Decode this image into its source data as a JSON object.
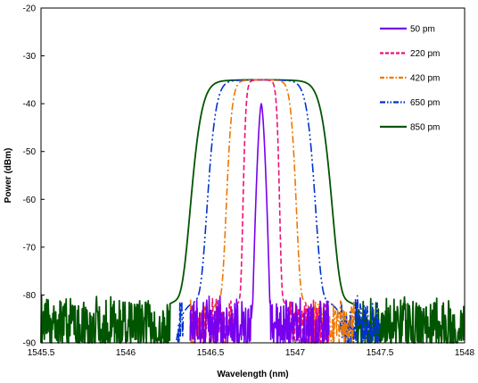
{
  "chart_data": {
    "type": "line",
    "title": "",
    "xlabel": "Wavelength (nm)",
    "ylabel": "Power (dBm)",
    "xlim": [
      1545.5,
      1548
    ],
    "ylim": [
      -90,
      -20
    ],
    "xticks": [
      1545.5,
      1546,
      1546.5,
      1547,
      1547.5,
      1548
    ],
    "xtick_labels": [
      "1545.5",
      "1546",
      "1546.5",
      "1547",
      "1547.5",
      "1548"
    ],
    "yticks": [
      -20,
      -30,
      -40,
      -50,
      -60,
      -70,
      -80,
      -90
    ],
    "ytick_labels": [
      "-20",
      "-30",
      "-40",
      "-50",
      "-60",
      "-70",
      "-80",
      "-90"
    ],
    "grid": false,
    "legend_position": "top-right",
    "noise_floor_range": [
      -90,
      -81
    ],
    "series": [
      {
        "name": "50 pm",
        "color": "#7700ee",
        "dash": "solid",
        "center": 1546.8,
        "half_width": 0.025,
        "peak": -40,
        "floor_edge": [
          1546.74,
          1546.86
        ],
        "noise_extent": [
          1546.38,
          1547.2
        ]
      },
      {
        "name": "220 pm",
        "color": "#ee1177",
        "dash": "dash",
        "center": 1546.8,
        "half_width": 0.11,
        "peak": -35,
        "floor_edge": [
          1546.59,
          1547.01
        ],
        "noise_extent": [
          1546.38,
          1547.2
        ]
      },
      {
        "name": "420 pm",
        "color": "#ee7700",
        "dash": "dash-dot",
        "center": 1546.8,
        "half_width": 0.21,
        "peak": -35,
        "floor_edge": [
          1546.42,
          1547.18
        ],
        "noise_extent": [
          1546.38,
          1547.35
        ]
      },
      {
        "name": "650 pm",
        "color": "#0033cc",
        "dash": "dash-dot-dot",
        "center": 1546.8,
        "half_width": 0.325,
        "peak": -35,
        "floor_edge": [
          1546.32,
          1547.3
        ],
        "noise_extent": [
          1546.3,
          1547.5
        ]
      },
      {
        "name": "850 pm",
        "color": "#005500",
        "dash": "solid",
        "center": 1546.8,
        "half_width": 0.425,
        "peak": -35,
        "floor_edge": [
          1546.26,
          1547.36
        ],
        "noise_extent": [
          1545.5,
          1548
        ]
      }
    ]
  }
}
